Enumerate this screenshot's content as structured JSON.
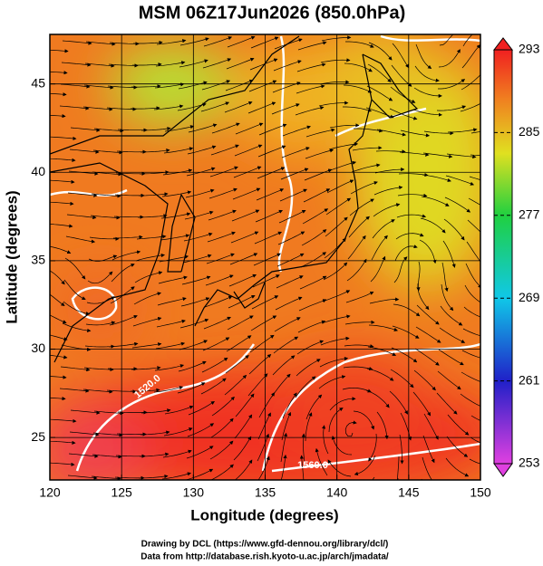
{
  "chart_data": {
    "type": "map",
    "title": "MSM 06Z17Jun2026 (850.0hPa)",
    "xlabel": "Longitude (degrees)",
    "ylabel": "Latitude  (degrees)",
    "xlim": [
      120,
      150
    ],
    "ylim": [
      22.6,
      47.8
    ],
    "xticks": [
      120,
      125,
      130,
      135,
      140,
      145,
      150
    ],
    "yticks": [
      25,
      30,
      35,
      40,
      45
    ],
    "grid": true,
    "colorbar": {
      "lim": [
        253,
        293
      ],
      "ticks": [
        253,
        261,
        269,
        277,
        285,
        293
      ]
    },
    "annotations": [
      "1520.0",
      "1560.0"
    ],
    "footer": [
      "Drawing by DCL (https://www.gfd-dennou.org/library/dcl/)",
      "Data from http://database.rish.kyoto-u.ac.jp/arch/jmadata/"
    ]
  }
}
